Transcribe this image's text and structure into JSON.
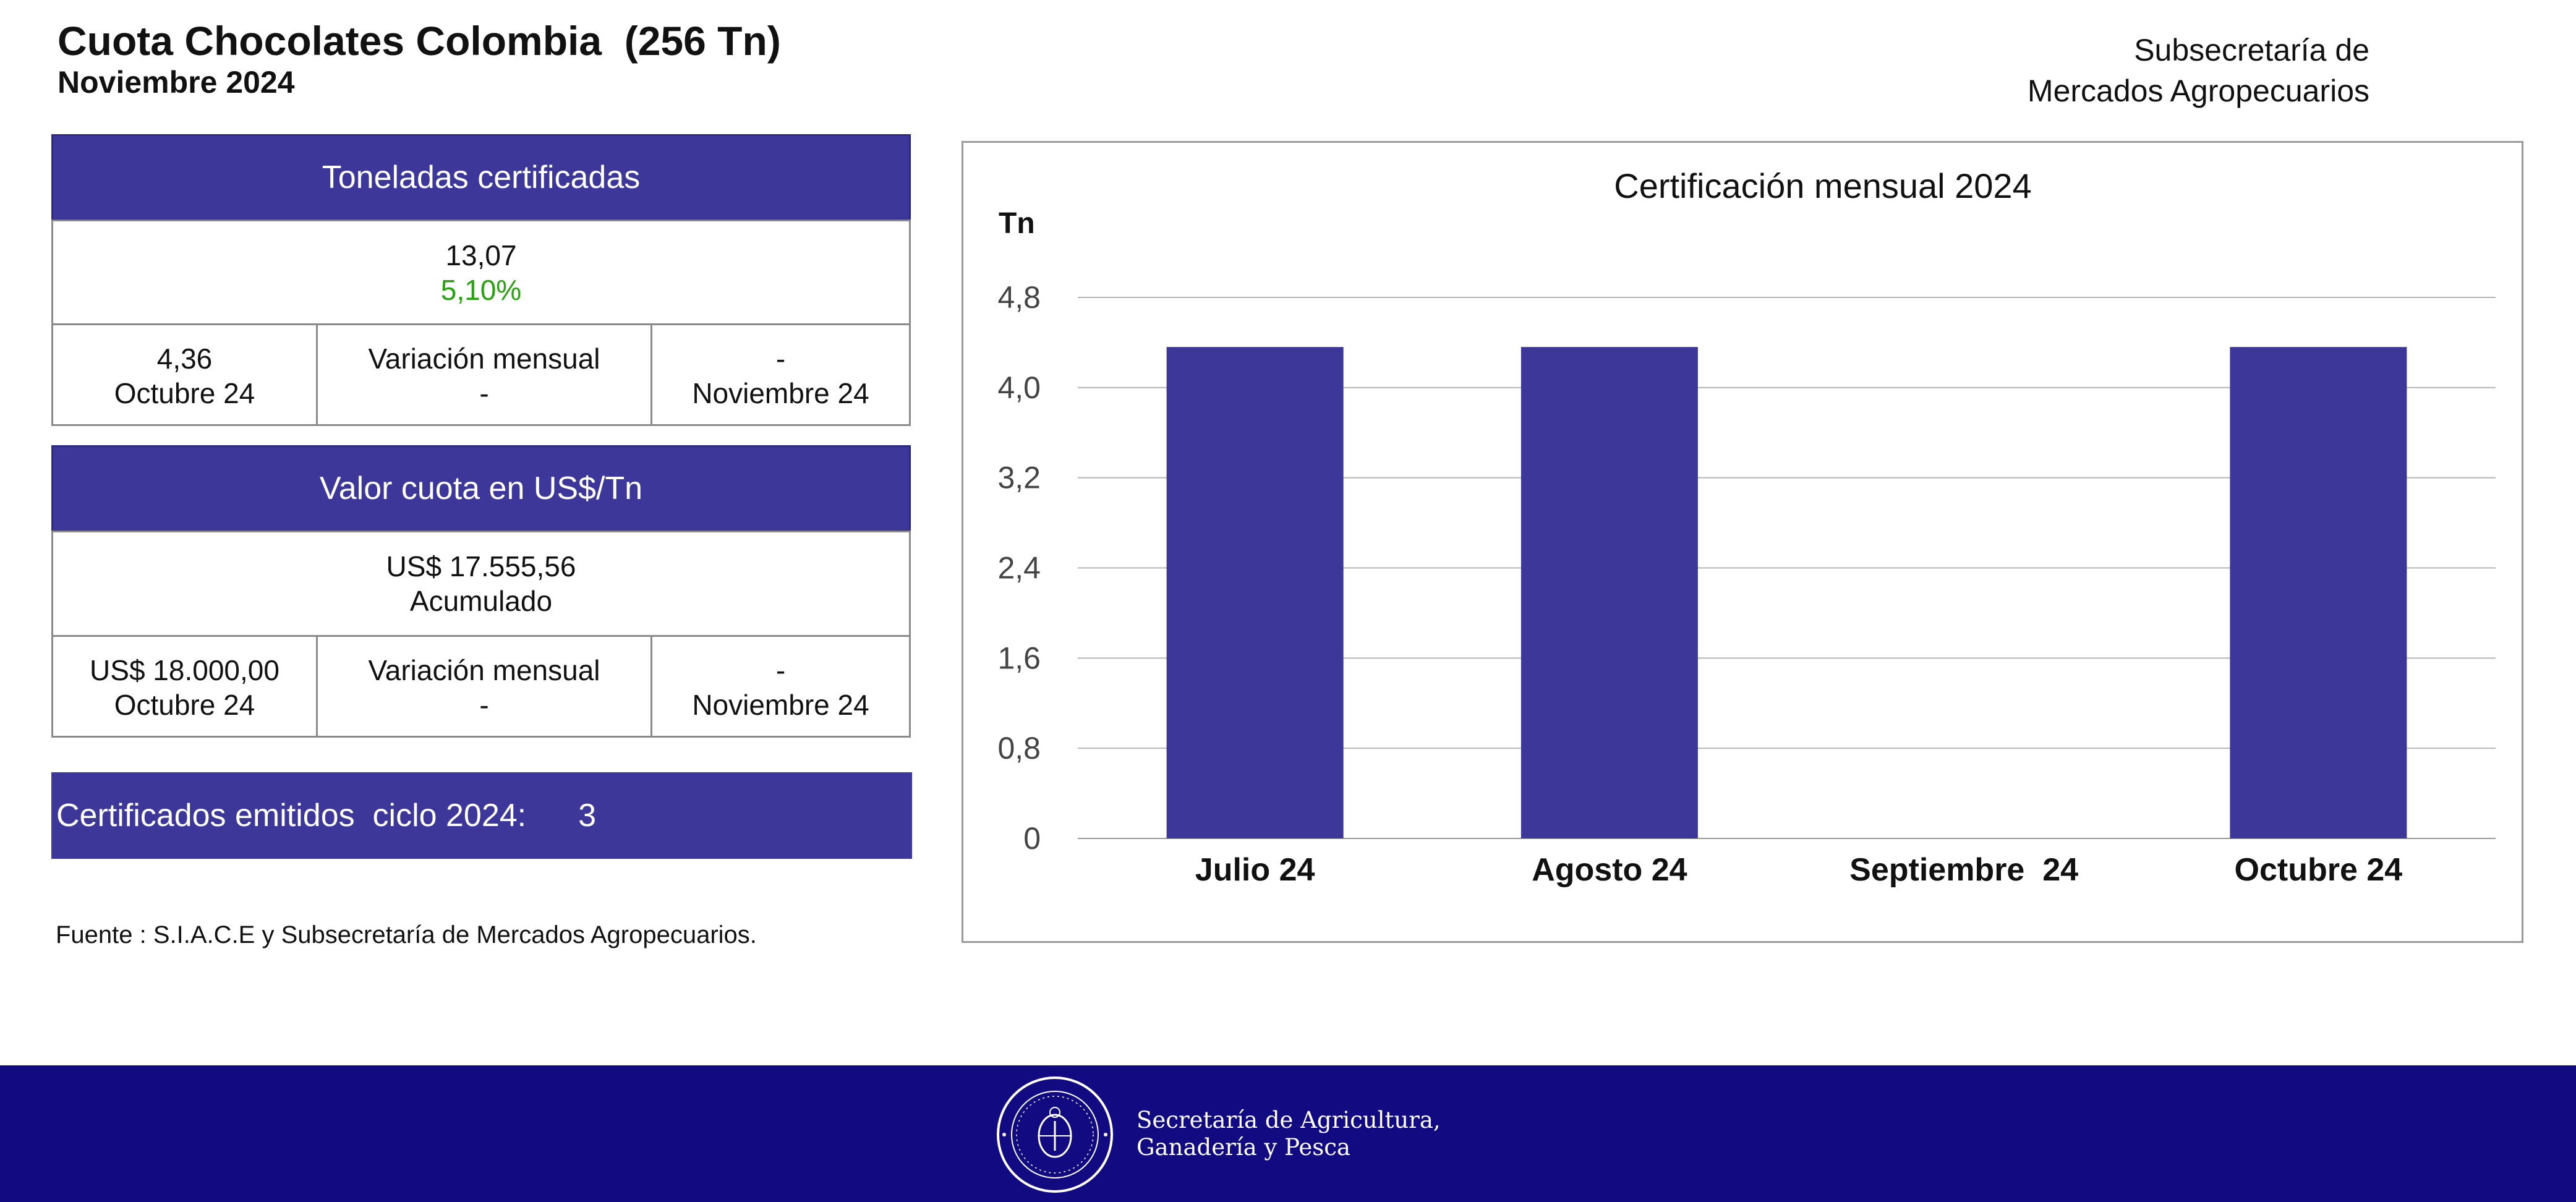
{
  "header": {
    "title": "Cuota Chocolates Colombia  (256 Tn)",
    "subtitle": "Noviembre 2024",
    "ministry_line1": "Subsecretaría de",
    "ministry_line2": "Mercados Agropecuarios"
  },
  "tonnage": {
    "heading": "Toneladas certificadas",
    "total": "13,07",
    "percent": "5,10%",
    "prev_value": "4,36",
    "prev_label": "Octubre 24",
    "variation_label": "Variación mensual",
    "variation_value": "-",
    "current_value": "-",
    "current_label": "Noviembre 24"
  },
  "quota_value": {
    "heading": "Valor cuota en US$/Tn",
    "total": "US$ 17.555,56",
    "total_label": "Acumulado",
    "prev_value": "US$ 18.000,00",
    "prev_label": "Octubre 24",
    "variation_label": "Variación mensual",
    "variation_value": "-",
    "current_value": "-",
    "current_label": "Noviembre 24"
  },
  "certificates": {
    "label": "Certificados emitidos  ciclo 2024:",
    "count": "3"
  },
  "source": "Fuente : S.I.A.C.E y Subsecretaría de Mercados Agropecuarios.",
  "footer": {
    "line1": "Secretaría de Agricultura,",
    "line2": "Ganadería y Pesca"
  },
  "colors": {
    "accent": "#3c3799",
    "footer_bg": "#110a80",
    "positive": "#27a10f"
  },
  "chart_data": {
    "type": "bar",
    "title": "Certificación mensual 2024",
    "ylabel": "Tn",
    "xlabel": "",
    "categories": [
      "Julio 24",
      "Agosto 24",
      "Septiembre  24",
      "Octubre 24"
    ],
    "values": [
      4.36,
      4.36,
      0,
      4.36
    ],
    "ylim": [
      0,
      4.8
    ],
    "yticks": [
      "0",
      "0,8",
      "1,6",
      "2,4",
      "3,2",
      "4,0",
      "4,8"
    ],
    "ytick_values": [
      0,
      0.8,
      1.6,
      2.4,
      3.2,
      4.0,
      4.8
    ],
    "grid": true,
    "bar_color": "#3c3799"
  }
}
